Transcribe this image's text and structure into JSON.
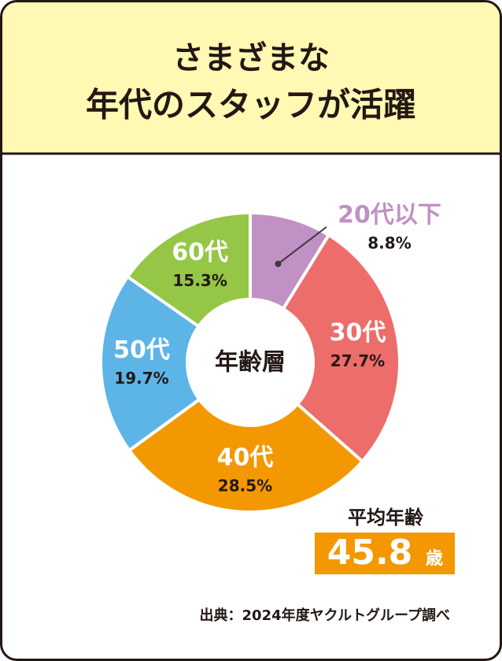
{
  "chart_data": {
    "type": "donut",
    "title_lines": [
      "さまざまな",
      "年代のスタッフが活躍"
    ],
    "center_label": "年齢層",
    "categories": [
      "20代以下",
      "30代",
      "40代",
      "50代",
      "60代"
    ],
    "values": [
      8.8,
      27.7,
      28.5,
      19.7,
      15.3
    ],
    "value_labels": [
      "8.8%",
      "27.7%",
      "28.5%",
      "19.7%",
      "15.3%"
    ],
    "colors": [
      "#c190c4",
      "#ec6d6a",
      "#f39800",
      "#5db4e6",
      "#95c646"
    ],
    "average": {
      "label": "平均年齢",
      "value": 45.8,
      "unit": "歳"
    },
    "source": "出典：2024年度ヤクルトグループ調べ"
  }
}
